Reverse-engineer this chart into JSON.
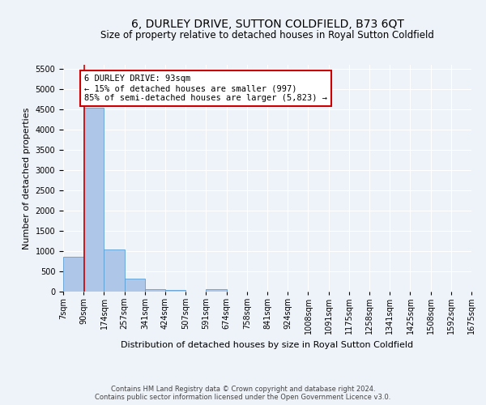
{
  "title": "6, DURLEY DRIVE, SUTTON COLDFIELD, B73 6QT",
  "subtitle": "Size of property relative to detached houses in Royal Sutton Coldfield",
  "xlabel": "Distribution of detached houses by size in Royal Sutton Coldfield",
  "ylabel": "Number of detached properties",
  "footer_line1": "Contains HM Land Registry data © Crown copyright and database right 2024.",
  "footer_line2": "Contains public sector information licensed under the Open Government Licence v3.0.",
  "bin_edges": [
    7,
    90,
    174,
    257,
    341,
    424,
    507,
    591,
    674,
    758,
    841,
    924,
    1008,
    1091,
    1175,
    1258,
    1341,
    1425,
    1508,
    1592,
    1675
  ],
  "bar_heights": [
    870,
    4550,
    1050,
    315,
    65,
    50,
    0,
    65,
    0,
    0,
    0,
    0,
    0,
    0,
    0,
    0,
    0,
    0,
    0,
    0
  ],
  "bar_color": "#aec6e8",
  "bar_edge_color": "#5a9fd4",
  "property_line_x": 93,
  "property_line_color": "#cc0000",
  "ylim": [
    0,
    5600
  ],
  "annotation_text": "6 DURLEY DRIVE: 93sqm\n← 15% of detached houses are smaller (997)\n85% of semi-detached houses are larger (5,823) →",
  "annotation_box_color": "#ffffff",
  "annotation_box_edge_color": "#cc0000",
  "bg_color": "#eef2f9",
  "grid_color": "#ffffff",
  "title_fontsize": 10,
  "subtitle_fontsize": 8.5,
  "ylabel_fontsize": 8,
  "xlabel_fontsize": 8,
  "tick_fontsize": 7,
  "annotation_fontsize": 7.5,
  "footer_fontsize": 6,
  "yticks": [
    0,
    500,
    1000,
    1500,
    2000,
    2500,
    3000,
    3500,
    4000,
    4500,
    5000,
    5500
  ]
}
